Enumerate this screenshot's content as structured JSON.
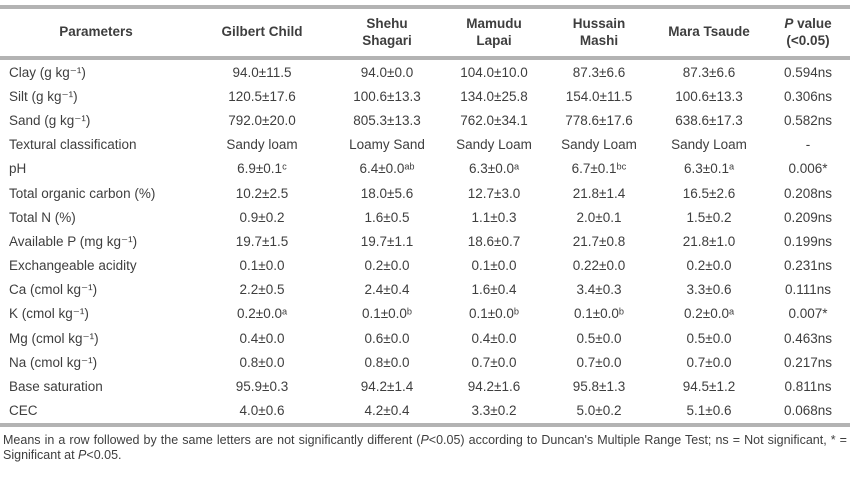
{
  "colors": {
    "border": "#b3b3b3",
    "text": "#3e3e3e",
    "background": "#ffffff"
  },
  "table": {
    "header": {
      "cells": [
        {
          "name": "parameters",
          "parts": [
            {
              "t": "Parameters"
            }
          ]
        },
        {
          "name": "gilbert-child",
          "parts": [
            {
              "t": "Gilbert Child"
            }
          ]
        },
        {
          "name": "shehu-shagari",
          "parts": [
            {
              "t": "Shehu"
            },
            {
              "br": true
            },
            {
              "t": "Shagari"
            }
          ]
        },
        {
          "name": "mamudu-lapai",
          "parts": [
            {
              "t": "Mamudu"
            },
            {
              "br": true
            },
            {
              "t": "Lapai"
            }
          ]
        },
        {
          "name": "hussain-mashi",
          "parts": [
            {
              "t": "Hussain"
            },
            {
              "br": true
            },
            {
              "t": "Mashi"
            }
          ]
        },
        {
          "name": "mara-tsaude",
          "parts": [
            {
              "t": "Mara Tsaude"
            }
          ]
        },
        {
          "name": "p-value",
          "parts": [
            {
              "t": "P",
              "i": true
            },
            {
              "t": " value"
            },
            {
              "br": true
            },
            {
              "t": "(<0.05)"
            }
          ]
        }
      ]
    },
    "rows": [
      {
        "param": "Clay (g kg⁻¹)",
        "values": [
          "94.0±11.5",
          "94.0±0.0",
          "104.0±10.0",
          "87.3±6.6",
          "87.3±6.6",
          "0.594ns"
        ]
      },
      {
        "param": "Silt (g kg⁻¹)",
        "values": [
          "120.5±17.6",
          "100.6±13.3",
          "134.0±25.8",
          "154.0±11.5",
          "100.6±13.3",
          "0.306ns"
        ]
      },
      {
        "param": "Sand (g kg⁻¹)",
        "values": [
          "792.0±20.0",
          "805.3±13.3",
          "762.0±34.1",
          "778.6±17.6",
          "638.6±17.3",
          "0.582ns"
        ]
      },
      {
        "param": "Textural classification",
        "values": [
          "Sandy loam",
          "Loamy Sand",
          "Sandy Loam",
          "Sandy Loam",
          "Sandy Loam",
          "-"
        ]
      },
      {
        "param": "pH",
        "values": [
          "6.9±0.1ᶜ",
          "6.4±0.0ᵃᵇ",
          "6.3±0.0ᵃ",
          "6.7±0.1ᵇᶜ",
          "6.3±0.1ᵃ",
          "0.006*"
        ]
      },
      {
        "param": "Total organic carbon (%)",
        "values": [
          "10.2±2.5",
          "18.0±5.6",
          "12.7±3.0",
          "21.8±1.4",
          "16.5±2.6",
          "0.208ns"
        ]
      },
      {
        "param": "Total N (%)",
        "values": [
          "0.9±0.2",
          "1.6±0.5",
          "1.1±0.3",
          "2.0±0.1",
          "1.5±0.2",
          "0.209ns"
        ]
      },
      {
        "param": "Available P (mg kg⁻¹)",
        "values": [
          "19.7±1.5",
          "19.7±1.1",
          "18.6±0.7",
          "21.7±0.8",
          "21.8±1.0",
          "0.199ns"
        ]
      },
      {
        "param": "Exchangeable acidity",
        "values": [
          "0.1±0.0",
          "0.2±0.0",
          "0.1±0.0",
          "0.22±0.0",
          "0.2±0.0",
          "0.231ns"
        ]
      },
      {
        "param": "Ca (cmol kg⁻¹)",
        "values": [
          "2.2±0.5",
          "2.4±0.4",
          "1.6±0.4",
          "3.4±0.3",
          "3.3±0.6",
          "0.111ns"
        ]
      },
      {
        "param": "K (cmol kg⁻¹)",
        "values": [
          "0.2±0.0ᵃ",
          "0.1±0.0ᵇ",
          "0.1±0.0ᵇ",
          "0.1±0.0ᵇ",
          "0.2±0.0ᵃ",
          "0.007*"
        ]
      },
      {
        "param": "Mg (cmol kg⁻¹)",
        "values": [
          "0.4±0.0",
          "0.6±0.0",
          "0.4±0.0",
          "0.5±0.0",
          "0.5±0.0",
          "0.463ns"
        ]
      },
      {
        "param": "Na (cmol kg⁻¹)",
        "values": [
          "0.8±0.0",
          "0.8±0.0",
          "0.7±0.0",
          "0.7±0.0",
          "0.7±0.0",
          "0.217ns"
        ]
      },
      {
        "param": "Base saturation",
        "values": [
          "95.9±0.3",
          "94.2±1.4",
          "94.2±1.6",
          "95.8±1.3",
          "94.5±1.2",
          "0.811ns"
        ]
      },
      {
        "param": "CEC",
        "values": [
          "4.0±0.6",
          "4.2±0.4",
          "3.3±0.2",
          "5.0±0.2",
          "5.1±0.6",
          "0.068ns"
        ]
      }
    ]
  },
  "footnote": {
    "parts": [
      {
        "t": "Means in a row followed by the same letters are not significantly different ("
      },
      {
        "t": "P",
        "i": true
      },
      {
        "t": "<0.05) according to Duncan's Multiple Range Test; ns = Not significant, * = Significant at "
      },
      {
        "t": "P",
        "i": true
      },
      {
        "t": "<0.05."
      }
    ]
  }
}
